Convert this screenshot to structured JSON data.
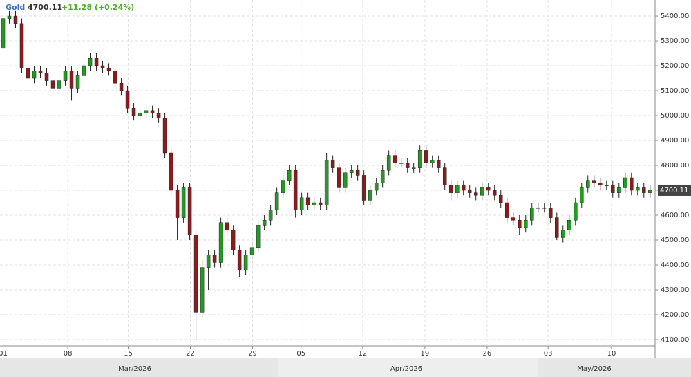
{
  "chart_data": {
    "type": "candlestick",
    "header": {
      "symbol": "Gold",
      "last": 4700.11,
      "change": "+11.28 (+0.24%)"
    },
    "months": [
      "Mar/2026",
      "Apr/2026",
      "May/2026"
    ],
    "ylim": [
      4075,
      5464
    ],
    "yticks": [
      {
        "value": 4100,
        "label": "4100.00"
      },
      {
        "value": 4200,
        "label": "4200.00"
      },
      {
        "value": 4300,
        "label": "4300.00"
      },
      {
        "value": 4400,
        "label": "4400.00"
      },
      {
        "value": 4500,
        "label": "4500.00"
      },
      {
        "value": 4600,
        "label": "4600.00"
      },
      {
        "value": 4700,
        "label": "4700.00"
      },
      {
        "value": 4800,
        "label": "4800.00"
      },
      {
        "value": 4900,
        "label": "4900.00"
      },
      {
        "value": 5000,
        "label": "5000.00"
      },
      {
        "value": 5100,
        "label": "5100.00"
      },
      {
        "value": 5200,
        "label": "5200.00"
      },
      {
        "value": 5300,
        "label": "5300.00"
      },
      {
        "value": 5400,
        "label": "5400.00"
      }
    ],
    "xlim": [
      0,
      105.3
    ],
    "xticks": [
      {
        "value": 0.5,
        "label": "01"
      },
      {
        "value": 10.9,
        "label": "08"
      },
      {
        "value": 20.6,
        "label": "15"
      },
      {
        "value": 30.6,
        "label": "22"
      },
      {
        "value": 40.6,
        "label": "29"
      },
      {
        "value": 48.4,
        "label": "05"
      },
      {
        "value": 58.3,
        "label": "12"
      },
      {
        "value": 68.3,
        "label": "19"
      },
      {
        "value": 78.3,
        "label": "26"
      },
      {
        "value": 88.1,
        "label": "03"
      },
      {
        "value": 98.3,
        "label": "10"
      }
    ],
    "grid": true,
    "up_color": "#239a23",
    "down_color": "#8a1c1c",
    "open": [
      5270,
      5390,
      5400,
      5370,
      5190,
      5150,
      5180,
      5170,
      5140,
      5110,
      5140,
      5180,
      5110,
      5160,
      5200,
      5230,
      5200,
      5190,
      5180,
      5130,
      5100,
      5030,
      5000,
      5010,
      5020,
      5010,
      4990,
      4850,
      4700,
      4590,
      4710,
      4520,
      4210,
      4390,
      4440,
      4410,
      4570,
      4540,
      4460,
      4380,
      4440,
      4470,
      4560,
      4580,
      4620,
      4690,
      4740,
      4780,
      4620,
      4670,
      4640,
      4650,
      4640,
      4820,
      4790,
      4710,
      4770,
      4780,
      4760,
      4660,
      4700,
      4730,
      4780,
      4840,
      4810,
      4810,
      4790,
      4790,
      4860,
      4810,
      4820,
      4790,
      4720,
      4690,
      4720,
      4700,
      4690,
      4680,
      4710,
      4700,
      4680,
      4650,
      4590,
      4580,
      4550,
      4580,
      4630,
      4630,
      4630,
      4590,
      4510,
      4540,
      4580,
      4650,
      4710,
      4740,
      4730,
      4720,
      4720,
      4690,
      4710,
      4750,
      4700,
      4710,
      4690
    ],
    "high": [
      5410,
      5420,
      5420,
      5390,
      5210,
      5200,
      5200,
      5190,
      5160,
      5160,
      5200,
      5200,
      5180,
      5220,
      5250,
      5250,
      5220,
      5210,
      5200,
      5150,
      5120,
      5050,
      5030,
      5040,
      5040,
      5030,
      5010,
      4870,
      4720,
      4730,
      4730,
      4540,
      4420,
      4460,
      4460,
      4590,
      4590,
      4560,
      4480,
      4460,
      4490,
      4580,
      4600,
      4640,
      4710,
      4760,
      4800,
      4800,
      4690,
      4690,
      4670,
      4670,
      4850,
      4840,
      4810,
      4790,
      4800,
      4800,
      4780,
      4720,
      4750,
      4800,
      4860,
      4860,
      4830,
      4830,
      4810,
      4880,
      4880,
      4840,
      4840,
      4810,
      4740,
      4740,
      4740,
      4720,
      4710,
      4730,
      4730,
      4720,
      4700,
      4670,
      4610,
      4600,
      4600,
      4650,
      4650,
      4650,
      4650,
      4610,
      4560,
      4600,
      4670,
      4730,
      4760,
      4760,
      4750,
      4740,
      4740,
      4730,
      4770,
      4770,
      4730,
      4730,
      4720
    ],
    "low": [
      5250,
      5370,
      5350,
      5170,
      5000,
      5130,
      5150,
      5120,
      5090,
      5090,
      5120,
      5060,
      5090,
      5140,
      5180,
      5180,
      5170,
      5160,
      5110,
      5080,
      5010,
      4980,
      4980,
      4990,
      4990,
      4970,
      4830,
      4680,
      4500,
      4570,
      4500,
      4100,
      4190,
      4300,
      4390,
      4390,
      4520,
      4440,
      4350,
      4360,
      4420,
      4450,
      4540,
      4560,
      4600,
      4670,
      4720,
      4590,
      4600,
      4620,
      4620,
      4620,
      4620,
      4770,
      4690,
      4690,
      4750,
      4740,
      4640,
      4640,
      4680,
      4710,
      4760,
      4790,
      4790,
      4770,
      4770,
      4770,
      4790,
      4790,
      4770,
      4700,
      4660,
      4670,
      4680,
      4670,
      4660,
      4660,
      4680,
      4660,
      4630,
      4570,
      4560,
      4520,
      4530,
      4560,
      4610,
      4610,
      4570,
      4500,
      4490,
      4520,
      4560,
      4630,
      4690,
      4710,
      4700,
      4700,
      4670,
      4670,
      4690,
      4680,
      4680,
      4670,
      4670
    ],
    "close": [
      5390,
      5400,
      5370,
      5190,
      5150,
      5180,
      5170,
      5140,
      5110,
      5140,
      5180,
      5110,
      5160,
      5200,
      5230,
      5200,
      5190,
      5180,
      5130,
      5100,
      5030,
      5000,
      5010,
      5020,
      5010,
      4990,
      4850,
      4700,
      4590,
      4710,
      4520,
      4210,
      4390,
      4440,
      4410,
      4570,
      4540,
      4460,
      4380,
      4440,
      4470,
      4560,
      4580,
      4620,
      4690,
      4740,
      4780,
      4620,
      4670,
      4640,
      4650,
      4640,
      4820,
      4790,
      4710,
      4770,
      4780,
      4760,
      4660,
      4700,
      4730,
      4780,
      4840,
      4810,
      4810,
      4790,
      4790,
      4860,
      4810,
      4820,
      4790,
      4720,
      4690,
      4720,
      4700,
      4690,
      4680,
      4710,
      4700,
      4680,
      4650,
      4590,
      4580,
      4550,
      4580,
      4630,
      4630,
      4630,
      4590,
      4510,
      4540,
      4580,
      4650,
      4710,
      4740,
      4730,
      4720,
      4720,
      4690,
      4710,
      4750,
      4700,
      4710,
      4690,
      4700.11
    ]
  }
}
